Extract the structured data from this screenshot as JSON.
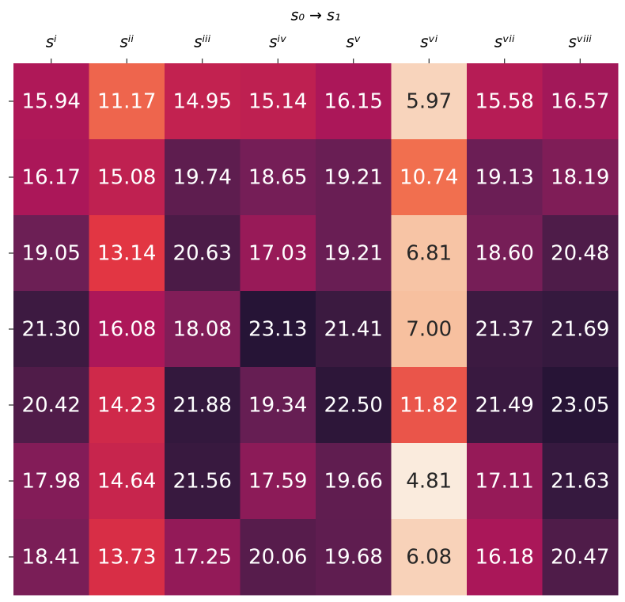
{
  "chart_data": {
    "type": "heatmap",
    "xlabel": "s₀ → s₁",
    "x_categories": [
      "sⁱ",
      "sⁱⁱ",
      "sⁱⁱⁱ",
      "sⁱᵛ",
      "sᵛ",
      "sᵛⁱ",
      "sᵛⁱⁱ",
      "sᵛⁱⁱⁱ"
    ],
    "y_categories": [
      null,
      null,
      null,
      null,
      null,
      null,
      null
    ],
    "values": [
      [
        15.94,
        11.17,
        14.95,
        15.14,
        16.15,
        5.97,
        15.58,
        16.57
      ],
      [
        16.17,
        15.08,
        19.74,
        18.65,
        19.21,
        10.74,
        19.13,
        18.19
      ],
      [
        19.05,
        13.14,
        20.63,
        17.03,
        19.21,
        6.81,
        18.6,
        20.48
      ],
      [
        21.3,
        16.08,
        18.08,
        23.13,
        21.41,
        7,
        21.37,
        21.69
      ],
      [
        20.42,
        14.23,
        21.88,
        19.34,
        22.5,
        11.82,
        21.49,
        23.05
      ],
      [
        17.98,
        14.64,
        21.56,
        17.59,
        19.66,
        4.81,
        17.11,
        21.63
      ],
      [
        18.41,
        13.73,
        17.25,
        20.06,
        19.68,
        6.08,
        16.18,
        20.47
      ]
    ],
    "value_labels": [
      [
        "15.94",
        "11.17",
        "14.95",
        "15.14",
        "16.15",
        "5.97",
        "15.58",
        "16.57"
      ],
      [
        "16.17",
        "15.08",
        "19.74",
        "18.65",
        "19.21",
        "10.74",
        "19.13",
        "18.19"
      ],
      [
        "19.05",
        "13.14",
        "20.63",
        "17.03",
        "19.21",
        "6.81",
        "18.60",
        "20.48"
      ],
      [
        "21.30",
        "16.08",
        "18.08",
        "23.13",
        "21.41",
        "7.00",
        "21.37",
        "21.69"
      ],
      [
        "20.42",
        "14.23",
        "21.88",
        "19.34",
        "22.50",
        "11.82",
        "21.49",
        "23.05"
      ],
      [
        "17.98",
        "14.64",
        "21.56",
        "17.59",
        "19.66",
        "4.81",
        "17.11",
        "21.63"
      ],
      [
        "18.41",
        "13.73",
        "17.25",
        "20.06",
        "19.68",
        "6.08",
        "16.18",
        "20.47"
      ]
    ],
    "color_range": [
      4.81,
      24.5
    ],
    "colormap": [
      "#faebdd",
      "#f6b48e",
      "#f37651",
      "#e13342",
      "#ad1759",
      "#701f57",
      "#35193e",
      "#180f2e"
    ]
  }
}
